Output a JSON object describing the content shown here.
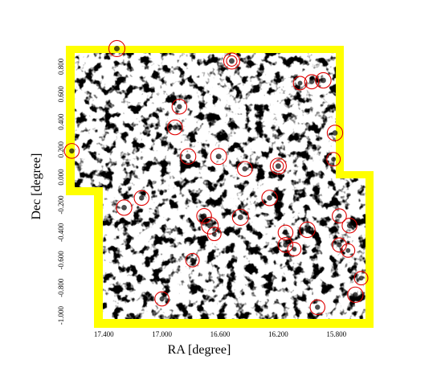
{
  "chart_data": {
    "type": "scatter",
    "xlabel": "RA [degree]",
    "ylabel": "Dec [degree]",
    "x_ticks": [
      "17.400",
      "17.000",
      "16.600",
      "16.200",
      "15.800"
    ],
    "x_tick_values": [
      17.4,
      17.0,
      16.6,
      16.2,
      15.8
    ],
    "y_ticks": [
      "-1.000",
      "-0.800",
      "-0.600",
      "-0.400",
      "-0.200",
      "0.000",
      "0.200",
      "0.400",
      "0.600",
      "0.800"
    ],
    "y_tick_values": [
      -1.0,
      -0.8,
      -0.6,
      -0.4,
      -0.2,
      0.0,
      0.2,
      0.4,
      0.6,
      0.8
    ],
    "xlim": [
      17.6,
      15.6
    ],
    "ylim": [
      -1.06,
      0.95
    ],
    "x_inverted": true,
    "grid": false,
    "colors": {
      "coverage_border": "#ffff00",
      "circles": "#e00000",
      "map_dark": "#000000"
    },
    "sources": [
      {
        "ra": 17.31,
        "dec": 0.93,
        "r": 1
      },
      {
        "ra": 16.52,
        "dec": 0.84,
        "r": 1,
        "double": true
      },
      {
        "ra": 16.05,
        "dec": 0.68,
        "r": 0.6
      },
      {
        "ra": 15.97,
        "dec": 0.69,
        "r": 0.7
      },
      {
        "ra": 15.89,
        "dec": 0.7,
        "r": 0.9
      },
      {
        "ra": 16.88,
        "dec": 0.51,
        "r": 0.8
      },
      {
        "ra": 16.91,
        "dec": 0.36,
        "r": 0.8
      },
      {
        "ra": 15.81,
        "dec": 0.32,
        "r": 0.9
      },
      {
        "ra": 17.62,
        "dec": 0.19,
        "r": 0.8
      },
      {
        "ra": 16.82,
        "dec": 0.15,
        "r": 0.9
      },
      {
        "ra": 16.61,
        "dec": 0.15,
        "r": 1
      },
      {
        "ra": 15.82,
        "dec": 0.13,
        "r": 0.6
      },
      {
        "ra": 16.43,
        "dec": 0.06,
        "r": 0.8
      },
      {
        "ra": 16.2,
        "dec": 0.08,
        "r": 1,
        "double": true
      },
      {
        "ra": 17.14,
        "dec": -0.15,
        "r": 0.8
      },
      {
        "ra": 17.26,
        "dec": -0.22,
        "r": 0.9
      },
      {
        "ra": 16.71,
        "dec": -0.28,
        "r": 0.8
      },
      {
        "ra": 16.26,
        "dec": -0.15,
        "r": 0.9
      },
      {
        "ra": 16.46,
        "dec": -0.29,
        "r": 1
      },
      {
        "ra": 15.78,
        "dec": -0.28,
        "r": 0.7
      },
      {
        "ra": 16.67,
        "dec": -0.35,
        "r": 1.1
      },
      {
        "ra": 16.64,
        "dec": -0.41,
        "r": 0.6
      },
      {
        "ra": 15.71,
        "dec": -0.35,
        "r": 0.8
      },
      {
        "ra": 16.15,
        "dec": -0.4,
        "r": 0.8
      },
      {
        "ra": 16.0,
        "dec": -0.38,
        "r": 0.9
      },
      {
        "ra": 16.15,
        "dec": -0.49,
        "r": 0.8
      },
      {
        "ra": 16.09,
        "dec": -0.52,
        "r": 0.6
      },
      {
        "ra": 15.78,
        "dec": -0.49,
        "r": 0.7
      },
      {
        "ra": 15.72,
        "dec": -0.53,
        "r": 0.6
      },
      {
        "ra": 16.79,
        "dec": -0.6,
        "r": 0.6
      },
      {
        "ra": 15.63,
        "dec": -0.73,
        "r": 0.6
      },
      {
        "ra": 15.67,
        "dec": -0.85,
        "r": 0.9
      },
      {
        "ra": 17.0,
        "dec": -0.88,
        "r": 0.7
      },
      {
        "ra": 15.93,
        "dec": -0.94,
        "r": 0.8
      }
    ]
  }
}
